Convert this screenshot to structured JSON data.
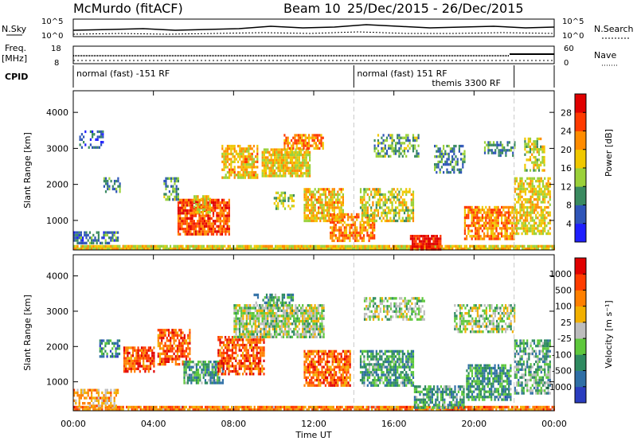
{
  "header": {
    "station": "McMurdo (fitACF)",
    "beam_label": "Beam 10",
    "date_range": "25/Dec/2015 - 26/Dec/2015"
  },
  "status_panels": {
    "nsky_label": "N.Sky",
    "nsky_ticks": [
      "10^5",
      "10^0"
    ],
    "nsearch_label": "N.Search",
    "nsearch_ticks": [
      "10^5",
      "10^0"
    ],
    "freq_label": "Freq.",
    "freq_unit": "[MHz]",
    "freq_ticks": [
      "18",
      "8"
    ],
    "nave_label": "Nave",
    "nave_ticks": [
      "60",
      "0"
    ],
    "cpid_label": "CPID",
    "cpid_segments": [
      {
        "start_h": 0.0,
        "end_h": 14.0,
        "lines": [
          "normal (fast) -151 RF"
        ]
      },
      {
        "start_h": 14.0,
        "end_h": 22.0,
        "lines": [
          "normal (fast) 151 RF",
          "themis 3300 RF"
        ]
      }
    ]
  },
  "x_axis": {
    "label": "Time UT",
    "ticks": [
      "00:00",
      "04:00",
      "08:00",
      "12:00",
      "16:00",
      "20:00",
      "00:00"
    ],
    "range_hours": [
      0,
      24
    ]
  },
  "chart_data": [
    {
      "type": "heatmap",
      "name": "power",
      "ylabel": "Slant Range [km]",
      "ylim": [
        180,
        4600
      ],
      "yticks": [
        1000,
        2000,
        3000,
        4000
      ],
      "colorbar_label": "Power [dB]",
      "colorbar_ticks": [
        "4",
        "8",
        "12",
        "16",
        "20",
        "24",
        "28"
      ],
      "colorbar_colors": [
        "#1f1fff",
        "#2f55b8",
        "#3a8a60",
        "#9bd13a",
        "#f0c800",
        "#ff8c00",
        "#ff3a00",
        "#e00000"
      ],
      "blobs": [
        {
          "t0": 0.0,
          "t1": 24.0,
          "r0": 200,
          "r1": 320,
          "level": 0.55,
          "density": 0.95
        },
        {
          "t0": 0.0,
          "t1": 2.2,
          "r0": 350,
          "r1": 700,
          "level": 0.25,
          "density": 0.7
        },
        {
          "t0": 0.3,
          "t1": 1.5,
          "r0": 3000,
          "r1": 3500,
          "level": 0.2,
          "density": 0.45
        },
        {
          "t0": 1.5,
          "t1": 2.3,
          "r0": 1800,
          "r1": 2200,
          "level": 0.3,
          "density": 0.6
        },
        {
          "t0": 4.5,
          "t1": 5.2,
          "r0": 1600,
          "r1": 2200,
          "level": 0.35,
          "density": 0.55
        },
        {
          "t0": 5.2,
          "t1": 7.8,
          "r0": 600,
          "r1": 1600,
          "level": 0.8,
          "density": 0.85
        },
        {
          "t0": 6.0,
          "t1": 6.8,
          "r0": 1200,
          "r1": 1700,
          "level": 0.55,
          "density": 0.7
        },
        {
          "t0": 7.4,
          "t1": 9.2,
          "r0": 2200,
          "r1": 3100,
          "level": 0.6,
          "density": 0.75
        },
        {
          "t0": 9.4,
          "t1": 11.8,
          "r0": 2200,
          "r1": 3000,
          "level": 0.55,
          "density": 0.85
        },
        {
          "t0": 10.5,
          "t1": 12.5,
          "r0": 3000,
          "r1": 3400,
          "level": 0.7,
          "density": 0.7
        },
        {
          "t0": 10.0,
          "t1": 11.0,
          "r0": 1300,
          "r1": 1800,
          "level": 0.45,
          "density": 0.5
        },
        {
          "t0": 11.5,
          "t1": 13.5,
          "r0": 1000,
          "r1": 1900,
          "level": 0.6,
          "density": 0.75
        },
        {
          "t0": 12.8,
          "t1": 15.0,
          "r0": 400,
          "r1": 1200,
          "level": 0.7,
          "density": 0.7
        },
        {
          "t0": 14.3,
          "t1": 17.0,
          "r0": 1000,
          "r1": 1900,
          "level": 0.5,
          "density": 0.6
        },
        {
          "t0": 15.0,
          "t1": 17.2,
          "r0": 2800,
          "r1": 3400,
          "level": 0.35,
          "density": 0.5
        },
        {
          "t0": 16.8,
          "t1": 18.3,
          "r0": 200,
          "r1": 600,
          "level": 0.9,
          "density": 0.9
        },
        {
          "t0": 18.0,
          "t1": 19.5,
          "r0": 2300,
          "r1": 3100,
          "level": 0.3,
          "density": 0.5
        },
        {
          "t0": 19.5,
          "t1": 22.0,
          "r0": 500,
          "r1": 1400,
          "level": 0.7,
          "density": 0.75
        },
        {
          "t0": 20.5,
          "t1": 22.0,
          "r0": 2800,
          "r1": 3200,
          "level": 0.3,
          "density": 0.5
        },
        {
          "t0": 22.0,
          "t1": 23.8,
          "r0": 600,
          "r1": 2200,
          "level": 0.55,
          "density": 0.7
        },
        {
          "t0": 22.5,
          "t1": 23.5,
          "r0": 2400,
          "r1": 3300,
          "level": 0.5,
          "density": 0.55
        }
      ]
    },
    {
      "type": "heatmap",
      "name": "velocity",
      "ylabel": "Slant Range [km]",
      "ylim": [
        180,
        4600
      ],
      "yticks": [
        1000,
        2000,
        3000,
        4000
      ],
      "colorbar_label": "Velocity [m s⁻¹]",
      "colorbar_ticks": [
        "1000",
        "500",
        "100",
        "25",
        "-25",
        "-100",
        "-500",
        "-1000"
      ],
      "colorbar_colors": [
        "#2a3dbf",
        "#2f6fa6",
        "#2e8a60",
        "#5ec83c",
        "#bdbdbd",
        "#f2b000",
        "#ff8000",
        "#ff3c00",
        "#e00000"
      ],
      "blobs": [
        {
          "t0": 0.0,
          "t1": 24.0,
          "r0": 200,
          "r1": 320,
          "level": 0.72,
          "density": 0.9
        },
        {
          "t0": 0.0,
          "t1": 2.2,
          "r0": 320,
          "r1": 800,
          "level": 0.65,
          "density": 0.6
        },
        {
          "t0": 1.3,
          "t1": 2.3,
          "r0": 1700,
          "r1": 2200,
          "level": 0.25,
          "density": 0.6
        },
        {
          "t0": 2.5,
          "t1": 4.0,
          "r0": 1300,
          "r1": 2000,
          "level": 0.8,
          "density": 0.75
        },
        {
          "t0": 4.2,
          "t1": 5.8,
          "r0": 1500,
          "r1": 2500,
          "level": 0.8,
          "density": 0.7
        },
        {
          "t0": 5.5,
          "t1": 7.5,
          "r0": 1000,
          "r1": 1600,
          "level": 0.3,
          "density": 0.8
        },
        {
          "t0": 7.2,
          "t1": 9.5,
          "r0": 1200,
          "r1": 2300,
          "level": 0.8,
          "density": 0.7
        },
        {
          "t0": 8.0,
          "t1": 12.5,
          "r0": 2300,
          "r1": 3200,
          "level": 0.45,
          "density": 0.8
        },
        {
          "t0": 9.0,
          "t1": 11.0,
          "r0": 3200,
          "r1": 3500,
          "level": 0.3,
          "density": 0.45
        },
        {
          "t0": 11.5,
          "t1": 13.8,
          "r0": 900,
          "r1": 1900,
          "level": 0.78,
          "density": 0.8
        },
        {
          "t0": 14.3,
          "t1": 17.0,
          "r0": 900,
          "r1": 1900,
          "level": 0.3,
          "density": 0.75
        },
        {
          "t0": 14.5,
          "t1": 17.5,
          "r0": 2800,
          "r1": 3400,
          "level": 0.45,
          "density": 0.55
        },
        {
          "t0": 17.0,
          "t1": 19.5,
          "r0": 250,
          "r1": 900,
          "level": 0.3,
          "density": 0.7
        },
        {
          "t0": 19.0,
          "t1": 22.0,
          "r0": 2400,
          "r1": 3200,
          "level": 0.45,
          "density": 0.6
        },
        {
          "t0": 19.6,
          "t1": 21.8,
          "r0": 500,
          "r1": 1500,
          "level": 0.28,
          "density": 0.75
        },
        {
          "t0": 22.0,
          "t1": 23.8,
          "r0": 700,
          "r1": 2200,
          "level": 0.35,
          "density": 0.65
        }
      ]
    }
  ]
}
